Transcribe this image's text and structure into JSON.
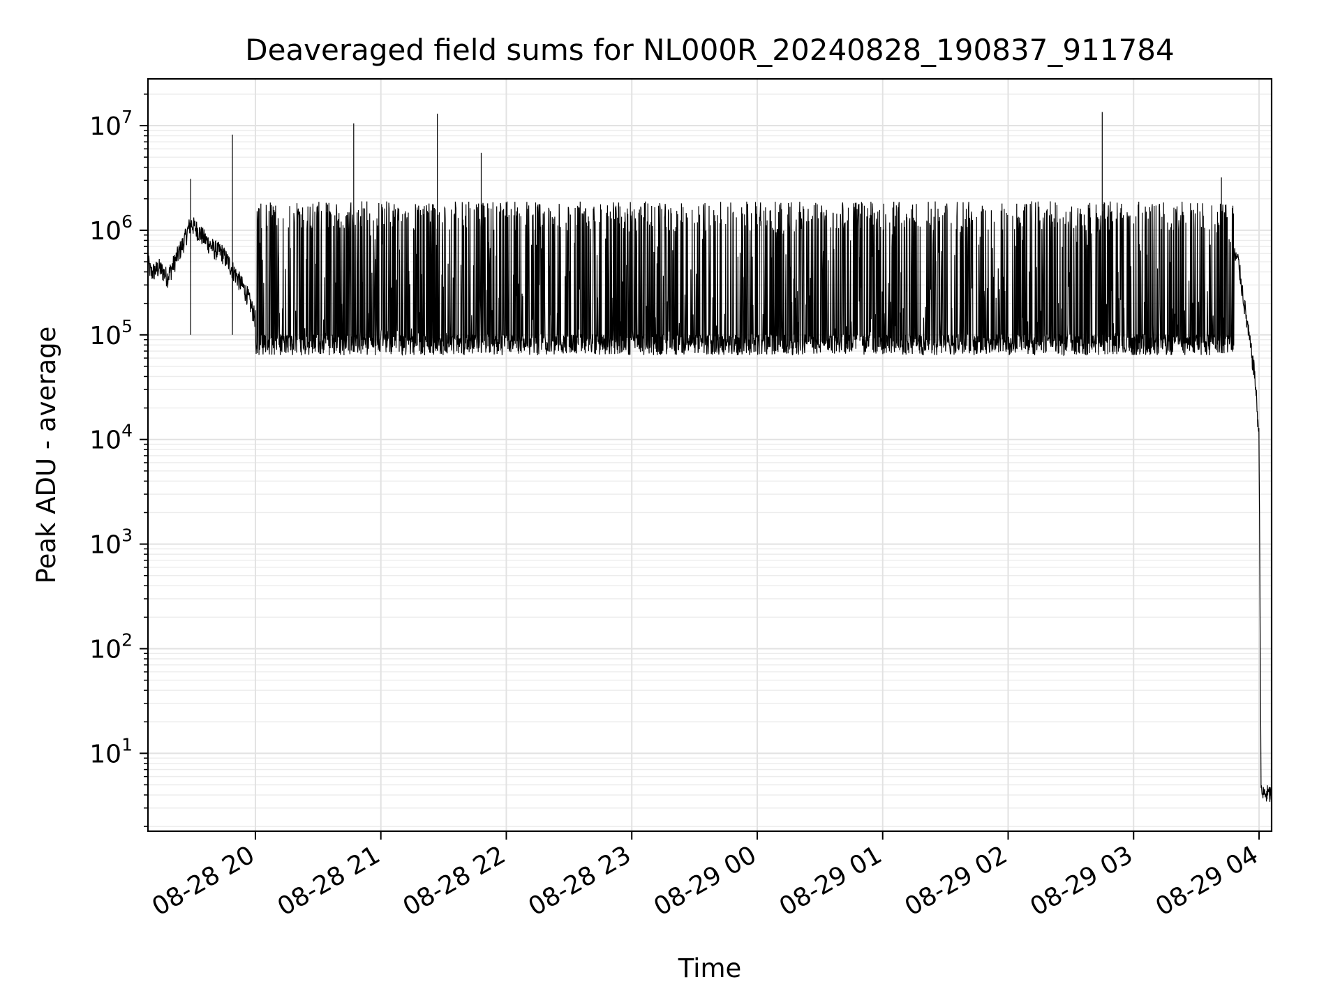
{
  "chart_data": {
    "type": "line",
    "title": "Deaveraged field sums for NL000R_20240828_190837_911784",
    "xlabel": "Time",
    "ylabel": "Peak ADU - average",
    "yscale": "log",
    "grid": true,
    "grid_minor": true,
    "line_color": "#000000",
    "x_ticks": [
      "08-28 20",
      "08-28 21",
      "08-28 22",
      "08-28 23",
      "08-29 00",
      "08-29 01",
      "08-29 02",
      "08-29 03",
      "08-29 04"
    ],
    "xlim": [
      "2024-08-28 19:08:37",
      "2024-08-29 04:06:00"
    ],
    "y_ticks": [
      {
        "base": "10",
        "exp": "1",
        "value": 10
      },
      {
        "base": "10",
        "exp": "2",
        "value": 100
      },
      {
        "base": "10",
        "exp": "3",
        "value": 1000
      },
      {
        "base": "10",
        "exp": "4",
        "value": 10000
      },
      {
        "base": "10",
        "exp": "5",
        "value": 100000
      },
      {
        "base": "10",
        "exp": "6",
        "value": 1000000
      },
      {
        "base": "10",
        "exp": "7",
        "value": 10000000
      }
    ],
    "ylim": [
      1.8,
      28000000
    ],
    "series": [
      {
        "values_note_omitted": true,
        "points": [
          [
            "2024-08-28 19:08:37",
            500000
          ],
          [
            "2024-08-28 19:10:00",
            380000
          ],
          [
            "2024-08-28 19:14:00",
            430000
          ],
          [
            "2024-08-28 19:18:00",
            350000
          ],
          [
            "2024-08-28 19:22:00",
            520000
          ],
          [
            "2024-08-28 19:26:00",
            780000
          ],
          [
            "2024-08-28 19:29:00",
            1150000
          ],
          [
            "2024-08-28 19:32:00",
            1000000
          ],
          [
            "2024-08-28 19:36:00",
            800000
          ],
          [
            "2024-08-28 19:40:00",
            650000
          ],
          [
            "2024-08-28 19:44:00",
            600000
          ],
          [
            "2024-08-28 19:48:00",
            450000
          ],
          [
            "2024-08-28 19:52:00",
            330000
          ],
          [
            "2024-08-28 19:56:00",
            240000
          ],
          [
            "2024-08-28 20:00:00",
            140000
          ],
          [
            "2024-08-28 20:04:00",
            90000
          ],
          [
            "2024-08-28 20:30:00",
            70000
          ],
          [
            "2024-08-28 21:30:00",
            80000
          ],
          [
            "2024-08-28 22:30:00",
            80000
          ],
          [
            "2024-08-28 23:30:00",
            80000
          ],
          [
            "2024-08-29 00:30:00",
            80000
          ],
          [
            "2024-08-29 01:30:00",
            85000
          ],
          [
            "2024-08-29 02:30:00",
            100000
          ],
          [
            "2024-08-29 03:00:00",
            300000
          ],
          [
            "2024-08-29 03:30:00",
            450000
          ],
          [
            "2024-08-29 03:45:00",
            700000
          ],
          [
            "2024-08-29 03:50:00",
            500000
          ],
          [
            "2024-08-29 03:55:00",
            100000
          ],
          [
            "2024-08-29 03:58:00",
            40000
          ],
          [
            "2024-08-29 04:00:00",
            10000
          ],
          [
            "2024-08-29 04:01:00",
            4
          ],
          [
            "2024-08-29 04:06:00",
            4
          ]
        ],
        "spikes": [
          [
            "2024-08-28 19:29:00",
            3100000
          ],
          [
            "2024-08-28 19:49:00",
            8200000
          ],
          [
            "2024-08-28 20:47:00",
            10500000
          ],
          [
            "2024-08-28 21:27:00",
            13000000
          ],
          [
            "2024-08-28 21:48:00",
            5500000
          ],
          [
            "2024-08-29 02:45:00",
            13500000
          ],
          [
            "2024-08-29 03:42:00",
            3200000
          ]
        ],
        "band": {
          "start": "2024-08-28 20:00:00",
          "end": "2024-08-29 03:48:00",
          "high": 1800000,
          "low": 75000
        }
      }
    ]
  }
}
